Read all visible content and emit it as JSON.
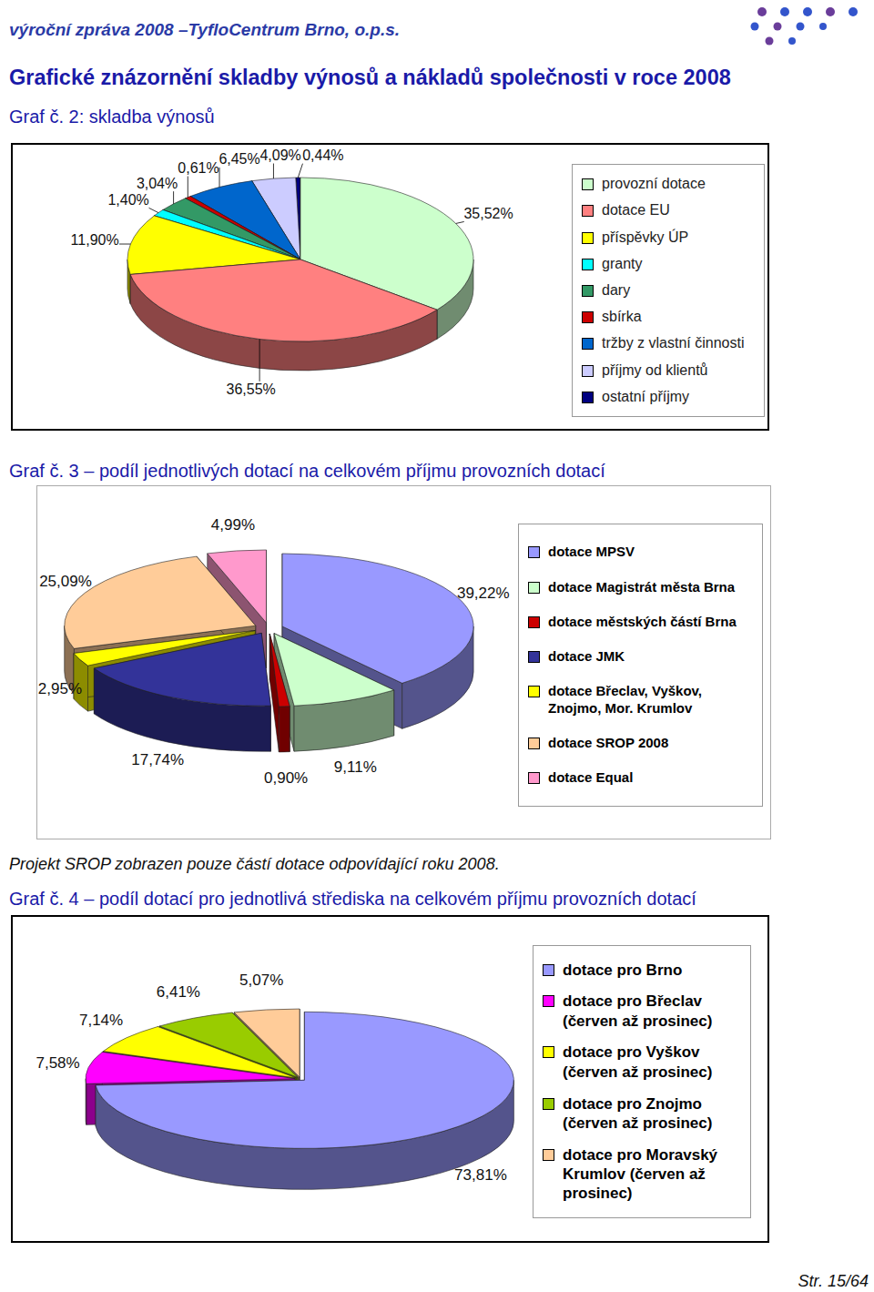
{
  "page": {
    "header": "výroční zpráva 2008 –TyfloCentrum Brno, o.p.s.",
    "title": "Grafické znázornění skladby výnosů a nákladů společnosti v roce 2008",
    "note": "Projekt SROP zobrazen pouze částí dotace odpovídající roku 2008.",
    "footer": "Str. 15/64"
  },
  "chart_data": [
    {
      "type": "pie",
      "title": "Graf č. 2: skladba výnosů",
      "categories": [
        "provozní dotace",
        "dotace EU",
        "příspěvky ÚP",
        "granty",
        "dary",
        "sbírka",
        "tržby z vlastní činnosti",
        "příjmy od klientů",
        "ostatní příjmy"
      ],
      "values": [
        35.52,
        36.55,
        11.9,
        1.4,
        3.04,
        0.61,
        6.45,
        4.09,
        0.44
      ],
      "value_labels": [
        "35,52%",
        "36,55%",
        "11,90%",
        "1,40%",
        "3,04%",
        "0,61%",
        "6,45%",
        "4,09%",
        "0,44%"
      ],
      "colors": [
        "#ccffcc",
        "#ff8080",
        "#ffff00",
        "#00ffff",
        "#339966",
        "#cc0000",
        "#0066cc",
        "#ccccff",
        "#000080"
      ],
      "data_labels": true,
      "legend": "right"
    },
    {
      "type": "pie",
      "title": "Graf č. 3 – podíl jednotlivých dotací na celkovém příjmu provozních dotací",
      "categories": [
        "dotace MPSV",
        "dotace Magistrát města Brna",
        "dotace městských částí Brna",
        "dotace JMK",
        "dotace Břeclav, Vyškov, Znojmo, Mor. Krumlov",
        "dotace SROP 2008",
        "dotace Equal"
      ],
      "values": [
        39.22,
        9.11,
        0.9,
        17.74,
        2.95,
        25.09,
        4.99
      ],
      "value_labels": [
        "39,22%",
        "9,11%",
        "0,90%",
        "17,74%",
        "2,95%",
        "25,09%",
        "4,99%"
      ],
      "colors": [
        "#9999ff",
        "#ccffcc",
        "#cc0000",
        "#333399",
        "#ffff00",
        "#ffcc99",
        "#ff99cc"
      ],
      "data_labels": true,
      "legend": "right"
    },
    {
      "type": "pie",
      "title": "Graf č. 4 – podíl dotací pro jednotlivá střediska na celkovém příjmu provozních dotací",
      "categories": [
        "dotace pro Brno",
        "dotace pro Břeclav (červen až prosinec)",
        "dotace pro Vyškov (červen až prosinec)",
        "dotace pro Znojmo (červen až prosinec)",
        "dotace pro Moravský Krumlov (červen až prosinec)"
      ],
      "values": [
        73.81,
        7.58,
        7.14,
        6.41,
        5.07
      ],
      "value_labels": [
        "73,81%",
        "7,58%",
        "7,14%",
        "6,41%",
        "5,07%"
      ],
      "colors": [
        "#9999ff",
        "#ff00ff",
        "#ffff00",
        "#99cc00",
        "#ffcc99"
      ],
      "data_labels": true,
      "legend": "right"
    }
  ]
}
